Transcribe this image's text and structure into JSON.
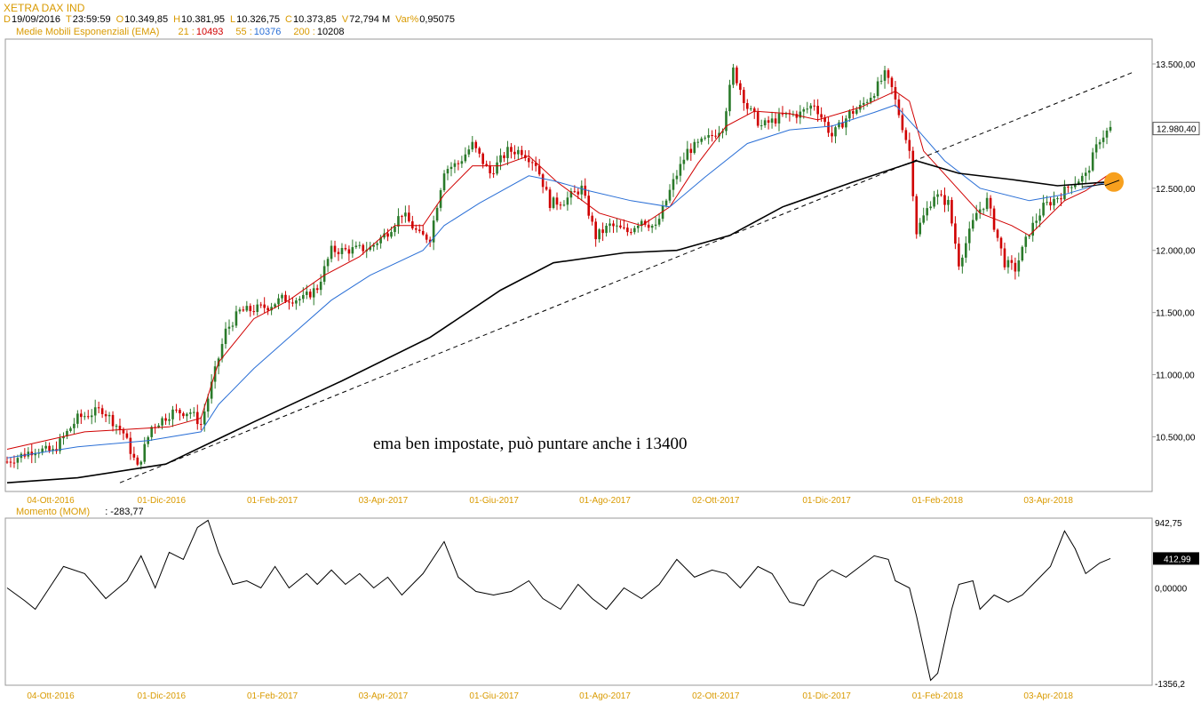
{
  "header": {
    "title": "XETRA DAX IND",
    "ohlc": [
      {
        "key": "D",
        "value": "19/09/2016"
      },
      {
        "key": "T",
        "value": "23:59:59"
      },
      {
        "key": "O",
        "value": "10.349,85"
      },
      {
        "key": "H",
        "value": "10.381,95"
      },
      {
        "key": "L",
        "value": "10.326,75"
      },
      {
        "key": "C",
        "value": "10.373,85"
      },
      {
        "key": "V",
        "value": "72,794 M"
      },
      {
        "key": "Var%",
        "value": "0,95075"
      }
    ],
    "ema_label": "Medie Mobili Esponenziali (EMA)",
    "ema": [
      {
        "period": "21 :",
        "value": "10493",
        "color": "#d00000"
      },
      {
        "period": "55 :",
        "value": "10376",
        "color": "#2a6fd6"
      },
      {
        "period": "200 :",
        "value": "10208",
        "color": "#000000"
      }
    ],
    "momentum_label": "Momento (MOM)",
    "momentum_value": ": -283,77"
  },
  "chart_data": [
    {
      "type": "candlestick",
      "title": "XETRA DAX IND",
      "annotation": "ema ben impostate, può puntare anche i 13400",
      "x_ticks": [
        "04-Ott-2016",
        "01-Dic-2016",
        "01-Feb-2017",
        "03-Apr-2017",
        "01-Giu-2017",
        "01-Ago-2017",
        "02-Ott-2017",
        "01-Dic-2017",
        "01-Feb-2018",
        "03-Apr-2018"
      ],
      "y_ticks": [
        "10.500,00",
        "11.000,00",
        "11.500,00",
        "12.000,00",
        "12.500,00",
        "13.500,00"
      ],
      "y_ticks_values": [
        10500,
        11000,
        11500,
        12000,
        12500,
        13500
      ],
      "ylim": [
        10060,
        13700
      ],
      "last_price_label": "12.980,40",
      "last_price": 12980.4,
      "close_path": [
        [
          0,
          10300
        ],
        [
          8,
          10400
        ],
        [
          13,
          10380
        ],
        [
          20,
          10650
        ],
        [
          27,
          10720
        ],
        [
          33,
          10530
        ],
        [
          37,
          10250
        ],
        [
          41,
          10580
        ],
        [
          47,
          10700
        ],
        [
          52,
          10700
        ],
        [
          55,
          10600
        ],
        [
          58,
          10920
        ],
        [
          62,
          11350
        ],
        [
          66,
          11510
        ],
        [
          69,
          11520
        ],
        [
          74,
          11550
        ],
        [
          78,
          11610
        ],
        [
          84,
          11610
        ],
        [
          88,
          11700
        ],
        [
          92,
          12000
        ],
        [
          96,
          12000
        ],
        [
          103,
          12020
        ],
        [
          108,
          12150
        ],
        [
          112,
          12300
        ],
        [
          117,
          12120
        ],
        [
          120,
          12100
        ],
        [
          124,
          12650
        ],
        [
          128,
          12700
        ],
        [
          132,
          12850
        ],
        [
          137,
          12620
        ],
        [
          142,
          12800
        ],
        [
          146,
          12800
        ],
        [
          150,
          12700
        ],
        [
          154,
          12380
        ],
        [
          158,
          12400
        ],
        [
          163,
          12500
        ],
        [
          167,
          12110
        ],
        [
          171,
          12200
        ],
        [
          176,
          12150
        ],
        [
          180,
          12250
        ],
        [
          184,
          12180
        ],
        [
          189,
          12550
        ],
        [
          193,
          12800
        ],
        [
          199,
          12900
        ],
        [
          203,
          13000
        ],
        [
          206,
          13450
        ],
        [
          210,
          13150
        ],
        [
          214,
          13000
        ],
        [
          220,
          13080
        ],
        [
          225,
          13100
        ],
        [
          229,
          13180
        ],
        [
          234,
          12920
        ],
        [
          239,
          13100
        ],
        [
          242,
          13150
        ],
        [
          246,
          13280
        ],
        [
          249,
          13410
        ],
        [
          251,
          13300
        ],
        [
          256,
          12800
        ],
        [
          258,
          12150
        ],
        [
          263,
          12450
        ],
        [
          267,
          12380
        ],
        [
          270,
          11900
        ],
        [
          275,
          12300
        ],
        [
          278,
          12400
        ],
        [
          283,
          11900
        ],
        [
          286,
          11850
        ],
        [
          290,
          12150
        ],
        [
          294,
          12350
        ],
        [
          299,
          12450
        ],
        [
          302,
          12540
        ],
        [
          306,
          12600
        ],
        [
          310,
          12900
        ],
        [
          313,
          12980
        ]
      ],
      "series": [
        {
          "name": "21",
          "color": "#d00000",
          "values": [
            [
              0,
              10400
            ],
            [
              22,
              10540
            ],
            [
              34,
              10560
            ],
            [
              46,
              10580
            ],
            [
              55,
              10650
            ],
            [
              60,
              11100
            ],
            [
              70,
              11450
            ],
            [
              80,
              11600
            ],
            [
              90,
              11800
            ],
            [
              100,
              11950
            ],
            [
              110,
              12200
            ],
            [
              118,
              12200
            ],
            [
              124,
              12450
            ],
            [
              132,
              12680
            ],
            [
              140,
              12680
            ],
            [
              148,
              12760
            ],
            [
              156,
              12550
            ],
            [
              168,
              12300
            ],
            [
              180,
              12200
            ],
            [
              188,
              12350
            ],
            [
              196,
              12700
            ],
            [
              204,
              13000
            ],
            [
              212,
              13120
            ],
            [
              222,
              13100
            ],
            [
              230,
              13050
            ],
            [
              242,
              13150
            ],
            [
              252,
              13280
            ],
            [
              256,
              13200
            ],
            [
              260,
              12800
            ],
            [
              268,
              12550
            ],
            [
              276,
              12300
            ],
            [
              285,
              12200
            ],
            [
              290,
              12120
            ],
            [
              300,
              12400
            ],
            [
              306,
              12480
            ],
            [
              312,
              12600
            ]
          ]
        },
        {
          "name": "55",
          "color": "#2a6fd6",
          "values": [
            [
              0,
              10330
            ],
            [
              20,
              10420
            ],
            [
              40,
              10470
            ],
            [
              55,
              10540
            ],
            [
              60,
              10760
            ],
            [
              70,
              11050
            ],
            [
              80,
              11300
            ],
            [
              92,
              11600
            ],
            [
              103,
              11800
            ],
            [
              118,
              12000
            ],
            [
              124,
              12200
            ],
            [
              134,
              12380
            ],
            [
              148,
              12600
            ],
            [
              155,
              12560
            ],
            [
              165,
              12480
            ],
            [
              177,
              12400
            ],
            [
              188,
              12350
            ],
            [
              198,
              12590
            ],
            [
              210,
              12860
            ],
            [
              222,
              12970
            ],
            [
              234,
              13000
            ],
            [
              246,
              13110
            ],
            [
              252,
              13170
            ],
            [
              258,
              12980
            ],
            [
              266,
              12720
            ],
            [
              276,
              12500
            ],
            [
              290,
              12400
            ],
            [
              300,
              12450
            ],
            [
              312,
              12550
            ]
          ]
        },
        {
          "name": "200",
          "color": "#000000",
          "values": [
            [
              0,
              10130
            ],
            [
              20,
              10170
            ],
            [
              45,
              10280
            ],
            [
              70,
              10620
            ],
            [
              95,
              10950
            ],
            [
              120,
              11300
            ],
            [
              140,
              11680
            ],
            [
              155,
              11900
            ],
            [
              175,
              11980
            ],
            [
              190,
              12000
            ],
            [
              205,
              12120
            ],
            [
              220,
              12350
            ],
            [
              240,
              12550
            ],
            [
              258,
              12720
            ],
            [
              270,
              12620
            ],
            [
              285,
              12570
            ],
            [
              298,
              12520
            ],
            [
              312,
              12550
            ]
          ]
        }
      ],
      "trendlines": [
        {
          "style": "dashed",
          "from": [
            32,
            10130
          ],
          "to": [
            320,
            13440
          ]
        },
        {
          "style": "solid",
          "from": [
            305,
            12510
          ],
          "to": [
            316,
            12550
          ]
        }
      ],
      "marker": {
        "x": 314,
        "y": 12550,
        "color": "#f7a01e"
      }
    },
    {
      "type": "line",
      "title": "Momento (MOM)",
      "x_ticks": [
        "04-Ott-2016",
        "01-Dic-2016",
        "01-Feb-2017",
        "03-Apr-2017",
        "01-Giu-2017",
        "01-Ago-2017",
        "02-Ott-2017",
        "01-Dic-2017",
        "01-Feb-2018",
        "03-Apr-2018"
      ],
      "y_ticks": [
        "942,75",
        "0,00000",
        "-1356,2"
      ],
      "y_ticks_values": [
        942.75,
        0,
        -1356.2
      ],
      "ylim": [
        -1356.2,
        942.75
      ],
      "last_value_label": "412,99",
      "last_value": 412.99,
      "values": [
        [
          0,
          0
        ],
        [
          5,
          -180
        ],
        [
          8,
          -300
        ],
        [
          12,
          0
        ],
        [
          16,
          300
        ],
        [
          22,
          200
        ],
        [
          28,
          -150
        ],
        [
          34,
          100
        ],
        [
          38,
          450
        ],
        [
          42,
          0
        ],
        [
          46,
          500
        ],
        [
          50,
          400
        ],
        [
          54,
          850
        ],
        [
          57,
          950
        ],
        [
          60,
          500
        ],
        [
          64,
          50
        ],
        [
          68,
          100
        ],
        [
          72,
          0
        ],
        [
          76,
          300
        ],
        [
          80,
          0
        ],
        [
          85,
          200
        ],
        [
          88,
          50
        ],
        [
          92,
          250
        ],
        [
          96,
          50
        ],
        [
          100,
          200
        ],
        [
          104,
          0
        ],
        [
          108,
          150
        ],
        [
          112,
          -100
        ],
        [
          118,
          200
        ],
        [
          124,
          650
        ],
        [
          128,
          150
        ],
        [
          133,
          -50
        ],
        [
          138,
          -100
        ],
        [
          143,
          -50
        ],
        [
          148,
          100
        ],
        [
          152,
          -150
        ],
        [
          157,
          -300
        ],
        [
          162,
          50
        ],
        [
          166,
          -150
        ],
        [
          170,
          -300
        ],
        [
          175,
          0
        ],
        [
          180,
          -150
        ],
        [
          185,
          50
        ],
        [
          190,
          400
        ],
        [
          195,
          150
        ],
        [
          200,
          250
        ],
        [
          204,
          200
        ],
        [
          208,
          0
        ],
        [
          213,
          300
        ],
        [
          217,
          200
        ],
        [
          222,
          -200
        ],
        [
          226,
          -250
        ],
        [
          230,
          100
        ],
        [
          234,
          250
        ],
        [
          238,
          150
        ],
        [
          242,
          300
        ],
        [
          246,
          450
        ],
        [
          250,
          400
        ],
        [
          252,
          100
        ],
        [
          256,
          0
        ],
        [
          258,
          -400
        ],
        [
          262,
          -1300
        ],
        [
          264,
          -1200
        ],
        [
          268,
          -300
        ],
        [
          270,
          50
        ],
        [
          274,
          100
        ],
        [
          276,
          -300
        ],
        [
          280,
          -100
        ],
        [
          284,
          -200
        ],
        [
          288,
          -100
        ],
        [
          292,
          100
        ],
        [
          296,
          300
        ],
        [
          300,
          800
        ],
        [
          303,
          550
        ],
        [
          306,
          200
        ],
        [
          310,
          350
        ],
        [
          313,
          413
        ]
      ]
    }
  ]
}
